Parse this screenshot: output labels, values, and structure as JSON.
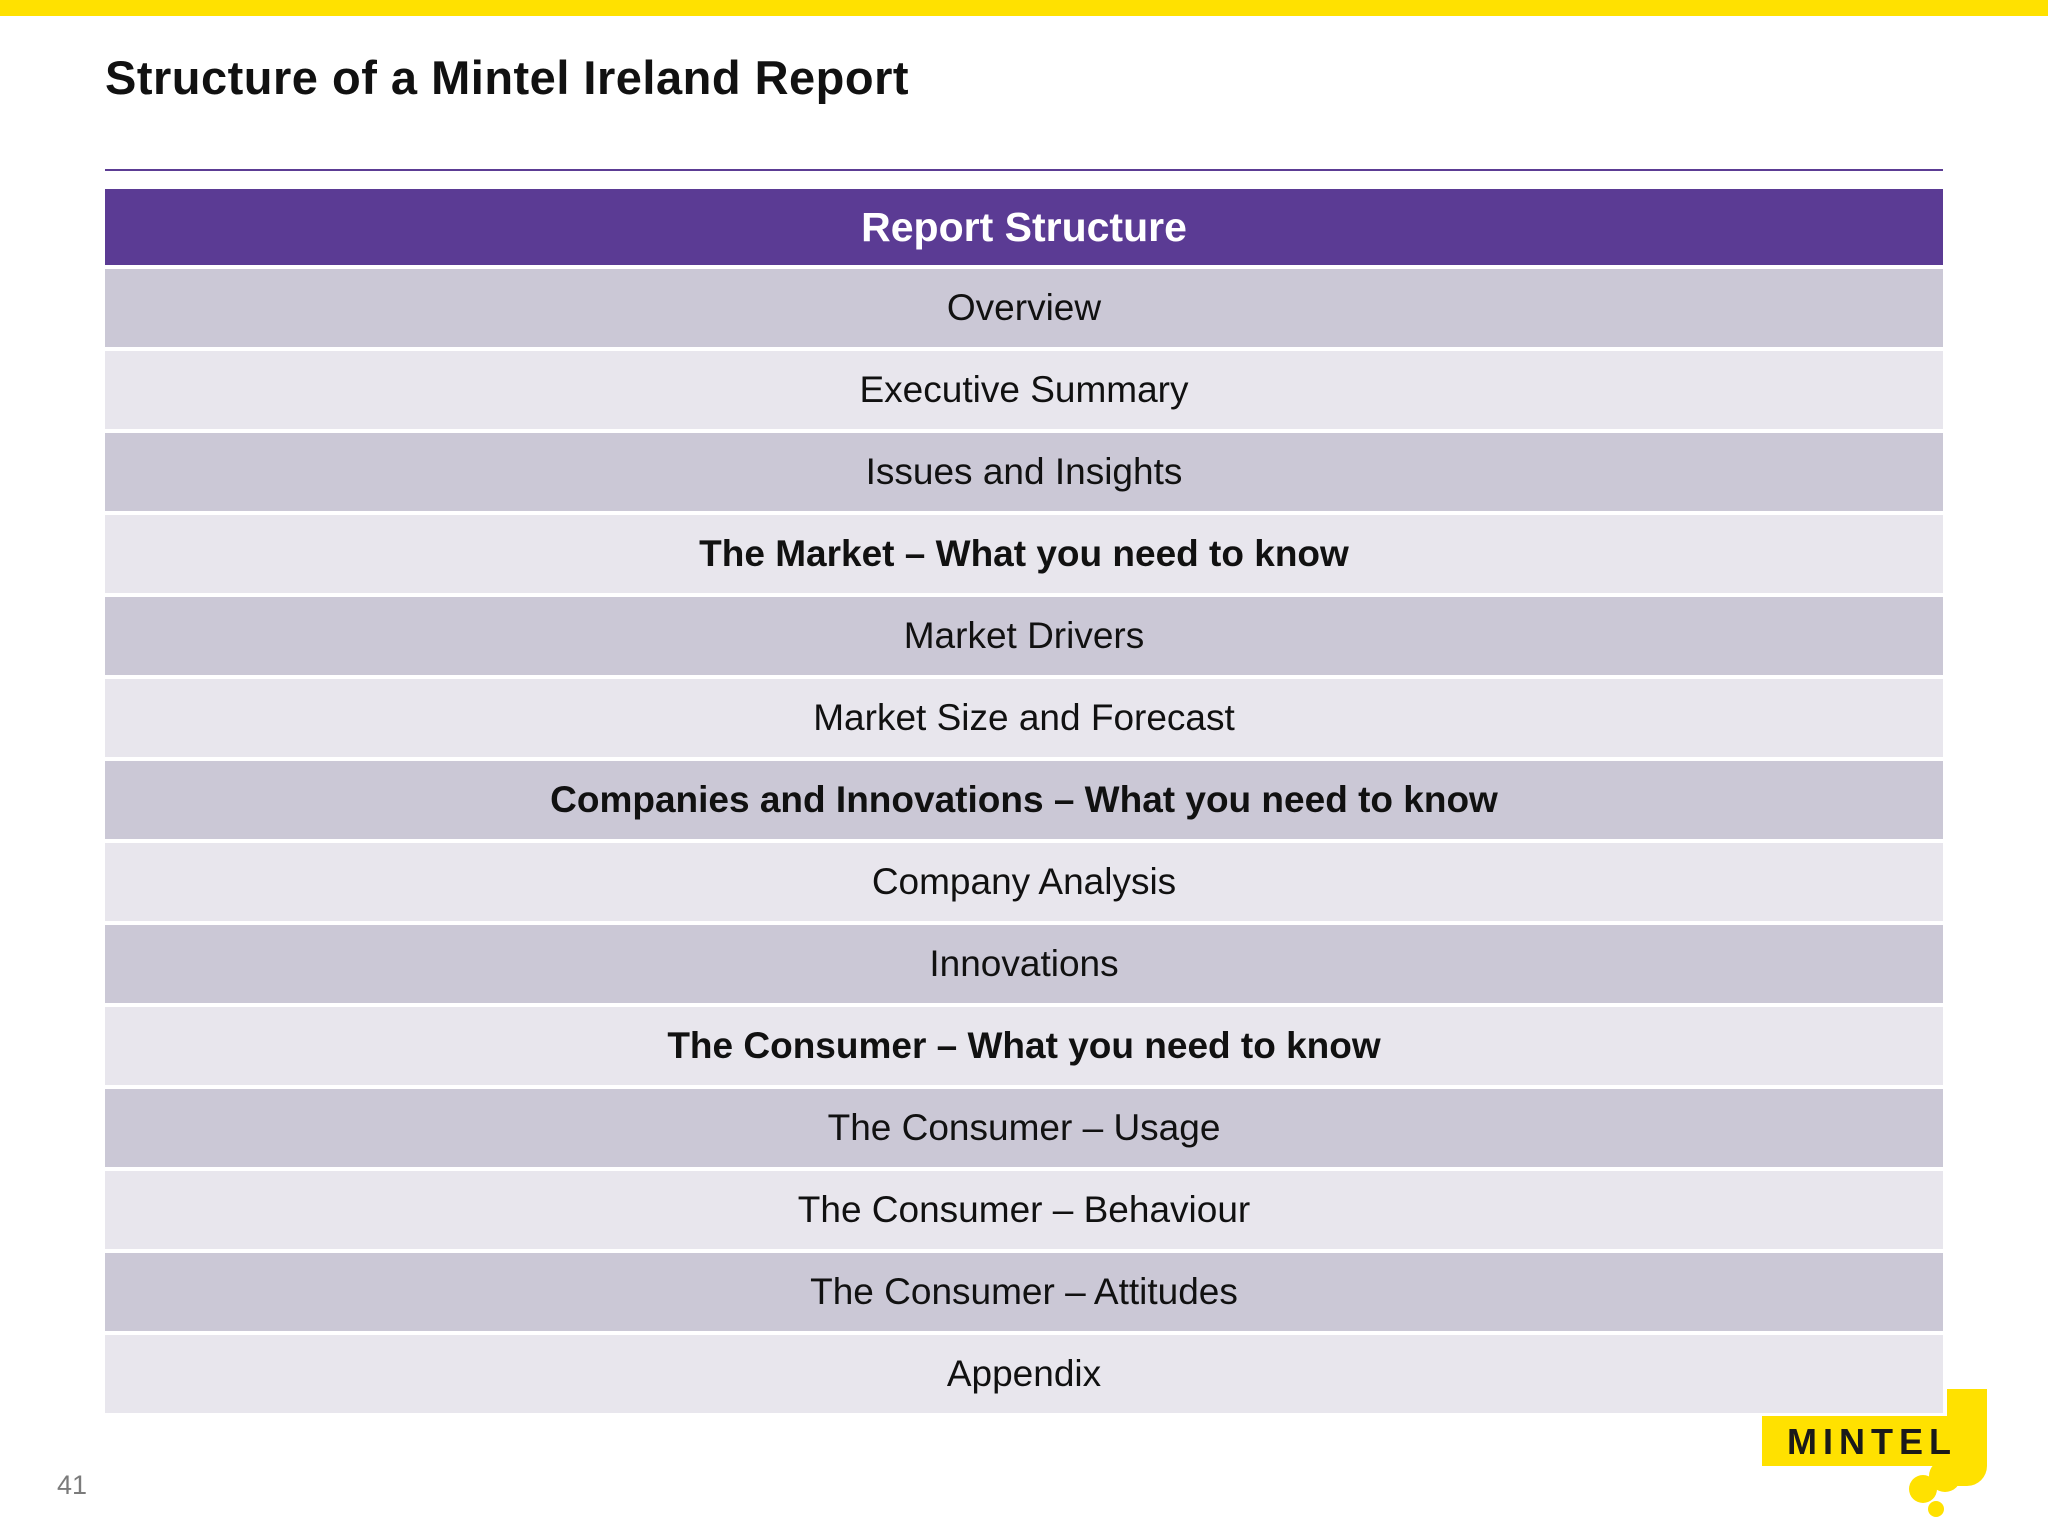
{
  "slide": {
    "title": "Structure of a Mintel Ireland Report",
    "page_number": "41"
  },
  "table": {
    "header": "Report Structure",
    "rows": [
      {
        "label": "Overview",
        "bold": false
      },
      {
        "label": "Executive Summary",
        "bold": false
      },
      {
        "label": "Issues and Insights",
        "bold": false
      },
      {
        "label": "The Market – What you need to know",
        "bold": true
      },
      {
        "label": "Market Drivers",
        "bold": false
      },
      {
        "label": "Market Size and Forecast",
        "bold": false
      },
      {
        "label": "Companies and Innovations – What you need to know",
        "bold": true
      },
      {
        "label": "Company Analysis",
        "bold": false
      },
      {
        "label": "Innovations",
        "bold": false
      },
      {
        "label": "The Consumer – What you need to know",
        "bold": true
      },
      {
        "label": "The Consumer – Usage",
        "bold": false
      },
      {
        "label": "The Consumer – Behaviour",
        "bold": false
      },
      {
        "label": "The Consumer – Attitudes",
        "bold": false
      },
      {
        "label": "Appendix",
        "bold": false
      }
    ]
  },
  "logo": {
    "text": "MINTEL"
  },
  "colors": {
    "top_bar": "#FFE100",
    "header_bg": "#5B3B94",
    "header_text": "#FFFFFF",
    "row_dark": "#CBC8D6",
    "row_light": "#E8E6ED",
    "divider": "#5C3D94",
    "page_number": "#7B7B7B",
    "logo_yellow": "#FFE100",
    "logo_text": "#1A1A1A"
  }
}
